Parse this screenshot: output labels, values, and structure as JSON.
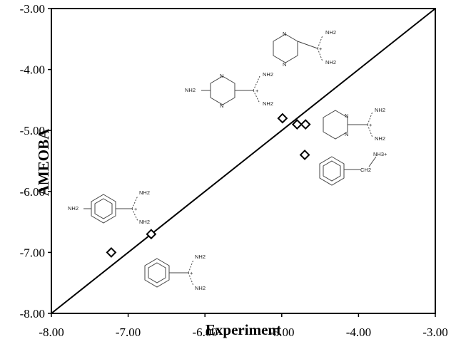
{
  "chart_data": {
    "type": "scatter",
    "xlabel": "Experiment",
    "ylabel": "AMEOBA",
    "xlim": [
      -8.0,
      -3.0
    ],
    "ylim": [
      -8.0,
      -3.0
    ],
    "x_ticks": [
      "-8.00",
      "-7.00",
      "-6.00",
      "-5.00",
      "-4.00",
      "-3.00"
    ],
    "y_ticks": [
      "-8.00",
      "-7.00",
      "-6.00",
      "-5.00",
      "-4.00",
      "-3.00"
    ],
    "reference_line": {
      "from": [
        -8.0,
        -8.0
      ],
      "to": [
        -3.0,
        -3.0
      ]
    },
    "points": [
      {
        "x": -7.22,
        "y": -7.0
      },
      {
        "x": -6.7,
        "y": -6.7
      },
      {
        "x": -4.99,
        "y": -4.8
      },
      {
        "x": -4.8,
        "y": -4.9
      },
      {
        "x": -4.69,
        "y": -4.9
      },
      {
        "x": -4.7,
        "y": -5.4
      }
    ],
    "marker": "open-diamond",
    "grid": false,
    "structure_labels": {
      "nh2": "NH2",
      "nh3_plus": "NH3+",
      "n": "N",
      "plus": "+",
      "ch2": "CH2"
    }
  }
}
